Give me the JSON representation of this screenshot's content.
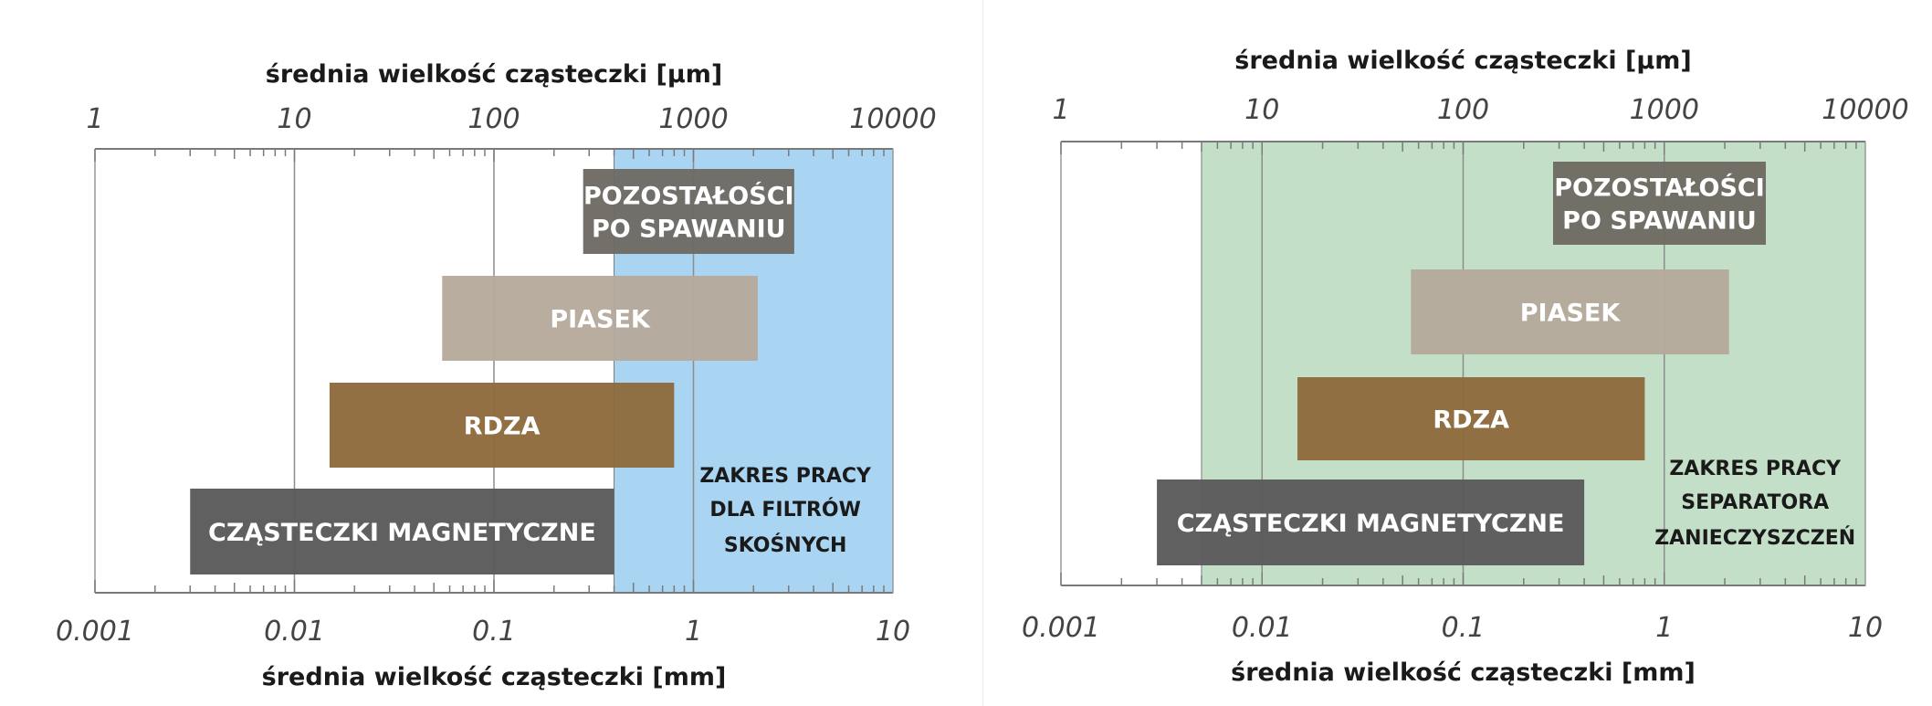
{
  "chart_data": [
    {
      "type": "bar",
      "orientation": "horizontal-range",
      "scale": "log",
      "top_axis": {
        "title": "średnia wielkość cząsteczki [µm]",
        "ticks": [
          1,
          10,
          100,
          1000,
          10000
        ],
        "tick_labels": [
          "1",
          "10",
          "100",
          "1000",
          "10000"
        ]
      },
      "bottom_axis": {
        "title": "średnia wielkość cząsteczki [mm]",
        "ticks": [
          0.001,
          0.01,
          0.1,
          1,
          10
        ],
        "tick_labels": [
          "0.001",
          "0.01",
          "0.1",
          "1",
          "10"
        ],
        "range": [
          0.001,
          10
        ]
      },
      "grid": true,
      "working_range": {
        "label_lines": [
          "ZAKRES PRACY",
          "DLA FILTRÓW",
          "SKOŚNYCH"
        ],
        "range_mm": [
          0.4,
          10
        ],
        "color": "#a9d4f2"
      },
      "bars": [
        {
          "label_lines": [
            "POZOSTAŁOŚCI",
            "PO SPAWANIU"
          ],
          "range_mm": [
            0.28,
            3.2
          ],
          "color": "#6e6a63"
        },
        {
          "label_lines": [
            "PIASEK"
          ],
          "range_mm": [
            0.055,
            2.1
          ],
          "color": "#b5aa9b"
        },
        {
          "label_lines": [
            "RDZA"
          ],
          "range_mm": [
            0.015,
            0.8
          ],
          "color": "#8e6a3c"
        },
        {
          "label_lines": [
            "CZĄSTECZKI MAGNETYCZNE"
          ],
          "range_mm": [
            0.003,
            0.4
          ],
          "color": "#595959"
        }
      ]
    },
    {
      "type": "bar",
      "orientation": "horizontal-range",
      "scale": "log",
      "top_axis": {
        "title": "średnia wielkość cząsteczki [µm]",
        "ticks": [
          1,
          10,
          100,
          1000,
          10000
        ],
        "tick_labels": [
          "1",
          "10",
          "100",
          "1000",
          "10000"
        ]
      },
      "bottom_axis": {
        "title": "średnia wielkość cząsteczki [mm]",
        "ticks": [
          0.001,
          0.01,
          0.1,
          1,
          10
        ],
        "tick_labels": [
          "0.001",
          "0.01",
          "0.1",
          "1",
          "10"
        ],
        "range": [
          0.001,
          10
        ]
      },
      "grid": true,
      "working_range": {
        "label_lines": [
          "ZAKRES PRACY",
          "SEPARATORA",
          "ZANIECZYSZCZEŃ"
        ],
        "range_mm": [
          0.005,
          10
        ],
        "color": "#c4dfc7"
      },
      "bars": [
        {
          "label_lines": [
            "POZOSTAŁOŚCI",
            "PO SPAWANIU"
          ],
          "range_mm": [
            0.28,
            3.2
          ],
          "color": "#6e6a63"
        },
        {
          "label_lines": [
            "PIASEK"
          ],
          "range_mm": [
            0.055,
            2.1
          ],
          "color": "#b5aa9b"
        },
        {
          "label_lines": [
            "RDZA"
          ],
          "range_mm": [
            0.015,
            0.8
          ],
          "color": "#8e6a3c"
        },
        {
          "label_lines": [
            "CZĄSTECZKI MAGNETYCZNE"
          ],
          "range_mm": [
            0.003,
            0.4
          ],
          "color": "#595959"
        }
      ]
    }
  ]
}
